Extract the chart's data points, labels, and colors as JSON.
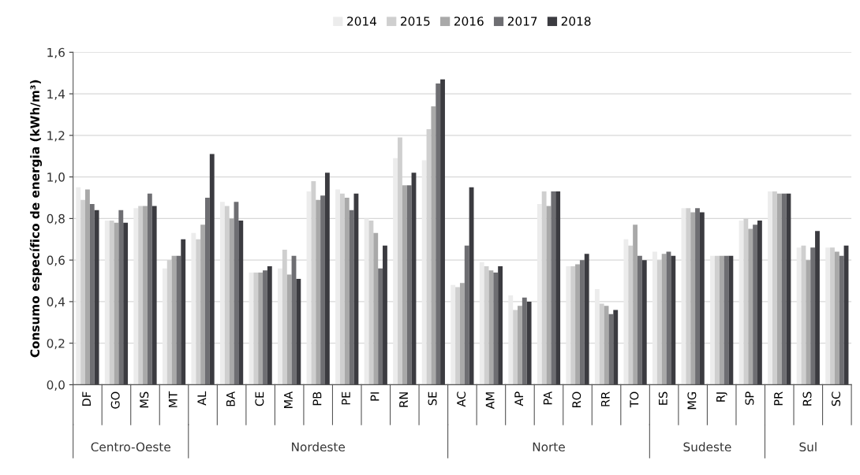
{
  "chart_data": {
    "type": "bar",
    "ylabel": "Consumo específico de energia (kWh/m³)",
    "categories": [
      "DF",
      "GO",
      "MS",
      "MT",
      "AL",
      "BA",
      "CE",
      "MA",
      "PB",
      "PE",
      "PI",
      "RN",
      "SE",
      "AC",
      "AM",
      "AP",
      "PA",
      "RO",
      "RR",
      "TO",
      "ES",
      "MG",
      "RJ",
      "SP",
      "PR",
      "RS",
      "SC"
    ],
    "series": [
      {
        "name": "2014",
        "color": "#ececec",
        "values": [
          0.95,
          0.79,
          0.85,
          0.56,
          0.73,
          0.88,
          0.54,
          0.56,
          0.93,
          0.94,
          0.8,
          1.09,
          1.08,
          0.48,
          0.59,
          0.43,
          0.87,
          0.57,
          0.46,
          0.7,
          0.64,
          0.85,
          0.62,
          0.79,
          0.93,
          0.66,
          0.66
        ]
      },
      {
        "name": "2015",
        "color": "#cfcfcf",
        "values": [
          0.89,
          0.79,
          0.86,
          0.6,
          0.7,
          0.86,
          0.54,
          0.65,
          0.98,
          0.92,
          0.79,
          1.19,
          1.23,
          0.47,
          0.57,
          0.36,
          0.93,
          0.57,
          0.39,
          0.67,
          0.6,
          0.85,
          0.62,
          0.8,
          0.93,
          0.67,
          0.66
        ]
      },
      {
        "name": "2016",
        "color": "#a9a9a9",
        "values": [
          0.94,
          0.78,
          0.86,
          0.62,
          0.77,
          0.8,
          0.54,
          0.53,
          0.89,
          0.9,
          0.73,
          0.96,
          1.34,
          0.49,
          0.55,
          0.38,
          0.86,
          0.58,
          0.38,
          0.77,
          0.63,
          0.83,
          0.62,
          0.75,
          0.92,
          0.6,
          0.64
        ]
      },
      {
        "name": "2017",
        "color": "#6e6e72",
        "values": [
          0.87,
          0.84,
          0.92,
          0.62,
          0.9,
          0.88,
          0.55,
          0.62,
          0.91,
          0.84,
          0.56,
          0.96,
          1.45,
          0.67,
          0.54,
          0.42,
          0.93,
          0.6,
          0.34,
          0.62,
          0.64,
          0.85,
          0.62,
          0.77,
          0.92,
          0.66,
          0.62
        ]
      },
      {
        "name": "2018",
        "color": "#3b3b40",
        "values": [
          0.84,
          0.78,
          0.86,
          0.7,
          1.11,
          0.79,
          0.57,
          0.51,
          1.02,
          0.92,
          0.67,
          1.02,
          1.47,
          0.95,
          0.57,
          0.4,
          0.93,
          0.63,
          0.36,
          0.6,
          0.62,
          0.83,
          0.62,
          0.79,
          0.92,
          0.74,
          0.67
        ]
      }
    ],
    "ylim": [
      0,
      1.6
    ],
    "yticks": [
      {
        "value": 0,
        "label": "0,0"
      },
      {
        "value": 0.2,
        "label": "0,2"
      },
      {
        "value": 0.4,
        "label": "0,4"
      },
      {
        "value": 0.6,
        "label": "0,6"
      },
      {
        "value": 0.8,
        "label": "0,8"
      },
      {
        "value": 1.0,
        "label": "1,0"
      },
      {
        "value": 1.2,
        "label": "1,2"
      },
      {
        "value": 1.4,
        "label": "1,4"
      },
      {
        "value": 1.6,
        "label": "1,6"
      }
    ],
    "annotations": [
      "Centro-Oeste",
      "Nordeste",
      "Norte",
      "Sudeste",
      "Sul"
    ],
    "grid": "y",
    "legend": "top"
  }
}
